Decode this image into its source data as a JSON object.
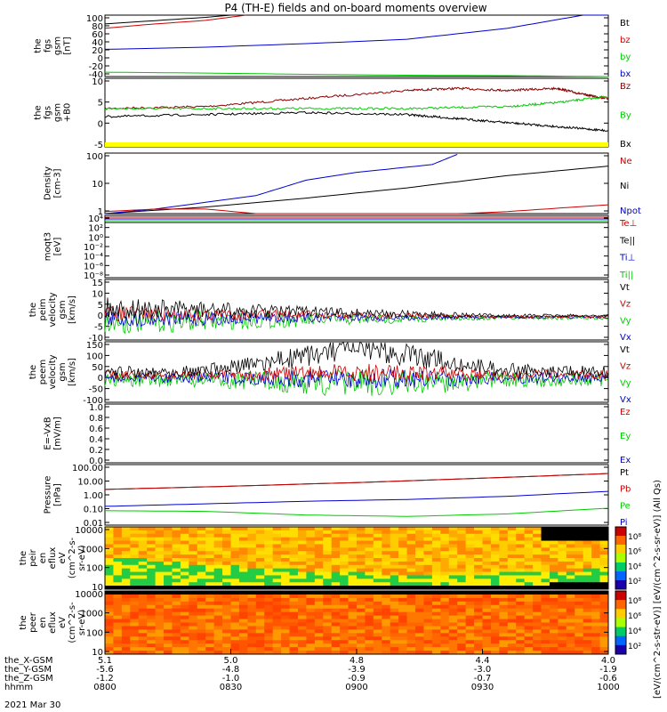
{
  "title": "P4 (TH-E) fields and on-board moments overview",
  "colors": {
    "black": "#000000",
    "red": "#cc0000",
    "green": "#00cc00",
    "blue": "#0000cc",
    "darkred": "#8b0000",
    "yellow": "#ffff00"
  },
  "chart_data": [
    {
      "id": "fgs",
      "type": "line",
      "ylabel": [
        "the",
        "fgs",
        "gsm",
        "[nT]"
      ],
      "yticks": [
        "100",
        "80",
        "60",
        "40",
        "20",
        "0",
        "-20",
        "-40"
      ],
      "legend": [
        {
          "label": "Bt",
          "color": "#000000"
        },
        {
          "label": "bz",
          "color": "#cc0000"
        },
        {
          "label": "by",
          "color": "#00cc00"
        },
        {
          "label": "bx",
          "color": "#0000cc"
        }
      ],
      "series": [
        {
          "name": "Bt",
          "color": "#000000",
          "x": [
            0,
            0.2,
            0.25
          ],
          "y": [
            80,
            95,
            100
          ]
        },
        {
          "name": "bz",
          "color": "#cc0000",
          "x": [
            0,
            0.1,
            0.2,
            0.28
          ],
          "y": [
            70,
            80,
            88,
            100
          ]
        },
        {
          "name": "by",
          "color": "#00cc00",
          "x": [
            0,
            0.2,
            0.4,
            0.6,
            0.8,
            1
          ],
          "y": [
            -30,
            -32,
            -35,
            -37,
            -38,
            -40
          ]
        },
        {
          "name": "bx",
          "color": "#0000cc",
          "x": [
            0,
            0.2,
            0.4,
            0.6,
            0.8,
            0.9,
            1
          ],
          "y": [
            22,
            27,
            35,
            45,
            70,
            90,
            110
          ]
        }
      ]
    },
    {
      "id": "fgs2",
      "type": "line",
      "ylabel": [
        "the",
        "fgs",
        "gsm",
        "+B0"
      ],
      "yticks": [
        "10",
        "5",
        "0",
        "-5"
      ],
      "legend": [
        {
          "label": "Bz",
          "color": "#8b0000"
        },
        {
          "label": "By",
          "color": "#00cc00"
        },
        {
          "label": "Bx",
          "color": "#000000"
        }
      ],
      "series": [
        {
          "name": "Bz",
          "color": "#8b0000",
          "x": [
            0,
            0.2,
            0.4,
            0.6,
            0.7,
            0.8,
            0.9,
            0.95,
            1
          ],
          "y": [
            2.5,
            3,
            5,
            7,
            7.5,
            7,
            7.5,
            6,
            5
          ]
        },
        {
          "name": "By",
          "color": "#00cc00",
          "x": [
            0,
            0.2,
            0.4,
            0.6,
            0.8,
            0.9,
            1
          ],
          "y": [
            2.5,
            2.5,
            2.5,
            2.5,
            3,
            4,
            5.5
          ]
        },
        {
          "name": "Bx",
          "color": "#000000",
          "x": [
            0,
            0.2,
            0.4,
            0.6,
            0.7,
            0.8,
            0.9,
            1
          ],
          "y": [
            0.5,
            1,
            1.5,
            1,
            0,
            -1,
            -2,
            -3
          ]
        }
      ]
    },
    {
      "id": "density",
      "type": "line",
      "scale": "log",
      "ylabel": [
        "Density",
        "[cm-3]"
      ],
      "yticks": [
        "100",
        "10",
        "1"
      ],
      "legend": [
        {
          "label": "Ne",
          "color": "#cc0000"
        },
        {
          "label": "Ni",
          "color": "#000000"
        },
        {
          "label": "Npot",
          "color": "#0000cc"
        }
      ],
      "series": [
        {
          "name": "Ni",
          "color": "#000000",
          "x": [
            0,
            0.2,
            0.4,
            0.6,
            0.8,
            1
          ],
          "y": [
            1,
            1.8,
            4,
            10,
            30,
            70
          ]
        },
        {
          "name": "Npot",
          "color": "#0000cc",
          "x": [
            0,
            0.1,
            0.3,
            0.4,
            0.5,
            0.65,
            0.7
          ],
          "y": [
            1,
            1.5,
            5,
            20,
            40,
            80,
            200
          ]
        },
        {
          "name": "Ne",
          "color": "#cc0000",
          "x": [
            0,
            0.1,
            0.2,
            0.3,
            0.4,
            0.5,
            0.6,
            0.8,
            1
          ],
          "y": [
            1.2,
            1.5,
            1.5,
            1,
            0.7,
            0.7,
            0.8,
            1.2,
            2.2
          ]
        }
      ]
    },
    {
      "id": "moqt3",
      "type": "line",
      "scale": "log",
      "ylabel": [
        "moqt3",
        "[eV]"
      ],
      "yticks": [
        "10⁴",
        "10²",
        "10⁰",
        "10⁻²",
        "10⁻⁴",
        "10⁻⁶",
        "10⁻⁸"
      ],
      "legend": [
        {
          "label": "Te⊥",
          "color": "#cc0000"
        },
        {
          "label": "Te||",
          "color": "#000000"
        },
        {
          "label": "Ti⊥",
          "color": "#0000cc"
        },
        {
          "label": "Ti||",
          "color": "#00cc00"
        }
      ]
    },
    {
      "id": "peim",
      "type": "line",
      "ylabel": [
        "the",
        "peim",
        "velocity",
        "gsm",
        "[km/s]"
      ],
      "yticks": [
        "15",
        "10",
        "5",
        "0",
        "-5",
        "-10"
      ],
      "legend": [
        {
          "label": "Vt",
          "color": "#000000"
        },
        {
          "label": "Vz",
          "color": "#cc0000"
        },
        {
          "label": "Vy",
          "color": "#00cc00"
        },
        {
          "label": "Vx",
          "color": "#0000cc"
        }
      ]
    },
    {
      "id": "peem",
      "type": "line",
      "ylabel": [
        "the",
        "peem",
        "velocity",
        "gsm",
        "[km/s]"
      ],
      "yticks": [
        "150",
        "100",
        "50",
        "0",
        "-50",
        "-100"
      ],
      "legend": [
        {
          "label": "Vt",
          "color": "#000000"
        },
        {
          "label": "Vz",
          "color": "#cc0000"
        },
        {
          "label": "Vy",
          "color": "#00cc00"
        },
        {
          "label": "Vx",
          "color": "#0000cc"
        }
      ]
    },
    {
      "id": "efield",
      "type": "line",
      "ylabel": [
        "E=-VxB",
        "[mV/m]"
      ],
      "yticks": [
        "1.0",
        "0.8",
        "0.6",
        "0.4",
        "0.2",
        "0.0"
      ],
      "legend": [
        {
          "label": "Ez",
          "color": "#cc0000"
        },
        {
          "label": "Ey",
          "color": "#00cc00"
        },
        {
          "label": "Ex",
          "color": "#0000cc"
        }
      ]
    },
    {
      "id": "pressure",
      "type": "line",
      "scale": "log",
      "ylabel": [
        "Pressure",
        "[nPa]"
      ],
      "yticks": [
        "100.00",
        "10.00",
        "1.00",
        "0.10",
        "0.01"
      ],
      "legend": [
        {
          "label": "Pt",
          "color": "#000000"
        },
        {
          "label": "Pb",
          "color": "#cc0000"
        },
        {
          "label": "Pe",
          "color": "#00cc00"
        },
        {
          "label": "Pi",
          "color": "#0000cc"
        }
      ],
      "series": [
        {
          "name": "Pt",
          "color": "#000000",
          "x": [
            0,
            0.25,
            0.5,
            0.75,
            1
          ],
          "y": [
            3,
            5,
            9,
            18,
            38
          ]
        },
        {
          "name": "Pb",
          "color": "#cc0000",
          "x": [
            0,
            0.25,
            0.5,
            0.75,
            1
          ],
          "y": [
            3,
            5,
            9,
            18,
            38
          ]
        },
        {
          "name": "Pi",
          "color": "#0000cc",
          "x": [
            0,
            0.2,
            0.4,
            0.6,
            0.8,
            1
          ],
          "y": [
            0.2,
            0.3,
            0.45,
            0.6,
            1,
            2.2
          ]
        },
        {
          "name": "Pe",
          "color": "#00cc00",
          "x": [
            0,
            0.2,
            0.4,
            0.6,
            0.8,
            1
          ],
          "y": [
            0.1,
            0.09,
            0.05,
            0.04,
            0.06,
            0.15
          ]
        }
      ]
    },
    {
      "id": "peir",
      "type": "heatmap",
      "ylabel": [
        "the",
        "peir",
        "en",
        "eflux",
        "eV",
        "(cm^2-s-",
        "sr-eV)"
      ],
      "yticks": [
        "10000",
        "1000",
        "100",
        "10"
      ]
    },
    {
      "id": "peer",
      "type": "heatmap",
      "ylabel": [
        "the",
        "peer",
        "en",
        "eflux",
        "eV",
        "(cm^2-s-",
        "sr-eV)"
      ],
      "yticks": [
        "10000",
        "1000",
        "100",
        "10"
      ]
    }
  ],
  "colorbar": {
    "ticks": [
      "10⁸",
      "10⁶",
      "10⁴",
      "10²"
    ],
    "label": "[eV/(cm^2-s-str-eV)] [eV/(cm^2-s-sr-eV)] (All Qs)"
  },
  "xaxis": {
    "rows": [
      {
        "label": "the_X-GSM",
        "values": [
          "5.1",
          "5.0",
          "4.8",
          "4.4",
          "4.0"
        ]
      },
      {
        "label": "the_Y-GSM",
        "values": [
          "-5.6",
          "-4.8",
          "-3.9",
          "-3.0",
          "-1.9"
        ]
      },
      {
        "label": "the_Z-GSM",
        "values": [
          "-1.2",
          "-1.0",
          "-0.9",
          "-0.7",
          "-0.6"
        ]
      },
      {
        "label": "hhmm",
        "values": [
          "0800",
          "0830",
          "0900",
          "0930",
          "1000"
        ]
      }
    ],
    "date": "2021 Mar 30"
  }
}
